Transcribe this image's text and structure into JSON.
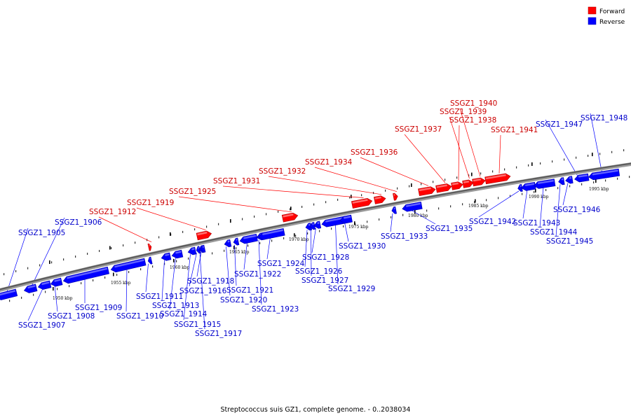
{
  "caption": "Streptococcus suis GZ1, complete genome. - 0..2038034",
  "legend": [
    {
      "label": "Forward",
      "color": "#ff0000"
    },
    {
      "label": "Reverse",
      "color": "#0000ff"
    }
  ],
  "scale": {
    "tick_labels": [
      "1950 kbp",
      "1955 kbp",
      "1960 kbp",
      "1965 kbp",
      "1970 kbp",
      "1975 kbp",
      "1980 kbp",
      "1985 kbp",
      "1990 kbp",
      "1995 kbp"
    ]
  },
  "genes": [
    {
      "id": "SSGZ1_1905",
      "strand": "reverse"
    },
    {
      "id": "SSGZ1_1906",
      "strand": "reverse"
    },
    {
      "id": "SSGZ1_1907",
      "strand": "reverse"
    },
    {
      "id": "SSGZ1_1908",
      "strand": "reverse"
    },
    {
      "id": "SSGZ1_1909",
      "strand": "reverse"
    },
    {
      "id": "SSGZ1_1910",
      "strand": "reverse"
    },
    {
      "id": "SSGZ1_1911",
      "strand": "reverse"
    },
    {
      "id": "SSGZ1_1912",
      "strand": "forward"
    },
    {
      "id": "SSGZ1_1913",
      "strand": "reverse"
    },
    {
      "id": "SSGZ1_1914",
      "strand": "reverse"
    },
    {
      "id": "SSGZ1_1915",
      "strand": "reverse"
    },
    {
      "id": "SSGZ1_1916",
      "strand": "reverse"
    },
    {
      "id": "SSGZ1_1917",
      "strand": "reverse"
    },
    {
      "id": "SSGZ1_1918",
      "strand": "reverse"
    },
    {
      "id": "SSGZ1_1919",
      "strand": "forward"
    },
    {
      "id": "SSGZ1_1920",
      "strand": "reverse"
    },
    {
      "id": "SSGZ1_1921",
      "strand": "reverse"
    },
    {
      "id": "SSGZ1_1922",
      "strand": "reverse"
    },
    {
      "id": "SSGZ1_1923",
      "strand": "reverse"
    },
    {
      "id": "SSGZ1_1924",
      "strand": "reverse"
    },
    {
      "id": "SSGZ1_1925",
      "strand": "forward"
    },
    {
      "id": "SSGZ1_1926",
      "strand": "reverse"
    },
    {
      "id": "SSGZ1_1927",
      "strand": "reverse"
    },
    {
      "id": "SSGZ1_1928",
      "strand": "reverse"
    },
    {
      "id": "SSGZ1_1929",
      "strand": "reverse"
    },
    {
      "id": "SSGZ1_1930",
      "strand": "reverse"
    },
    {
      "id": "SSGZ1_1931",
      "strand": "forward"
    },
    {
      "id": "SSGZ1_1932",
      "strand": "forward"
    },
    {
      "id": "SSGZ1_1933",
      "strand": "reverse"
    },
    {
      "id": "SSGZ1_1934",
      "strand": "forward"
    },
    {
      "id": "SSGZ1_1935",
      "strand": "reverse"
    },
    {
      "id": "SSGZ1_1936",
      "strand": "forward"
    },
    {
      "id": "SSGZ1_1937",
      "strand": "forward"
    },
    {
      "id": "SSGZ1_1938",
      "strand": "forward"
    },
    {
      "id": "SSGZ1_1939",
      "strand": "forward"
    },
    {
      "id": "SSGZ1_1940",
      "strand": "forward"
    },
    {
      "id": "SSGZ1_1941",
      "strand": "forward"
    },
    {
      "id": "SSGZ1_1942",
      "strand": "reverse"
    },
    {
      "id": "SSGZ1_1943",
      "strand": "reverse"
    },
    {
      "id": "SSGZ1_1944",
      "strand": "reverse"
    },
    {
      "id": "SSGZ1_1945",
      "strand": "reverse"
    },
    {
      "id": "SSGZ1_1946",
      "strand": "reverse"
    },
    {
      "id": "SSGZ1_1947",
      "strand": "reverse"
    },
    {
      "id": "SSGZ1_1948",
      "strand": "reverse"
    }
  ]
}
